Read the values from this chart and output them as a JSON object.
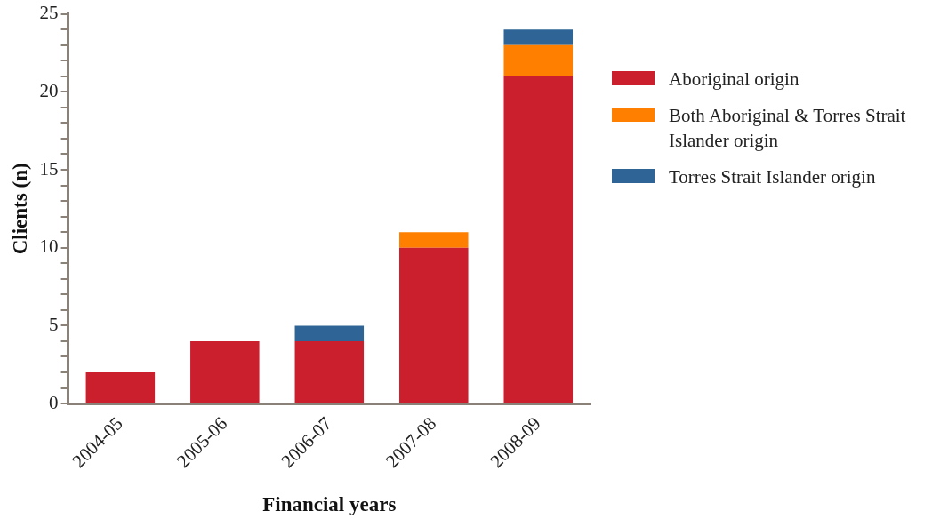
{
  "chart_data": {
    "type": "bar",
    "xlabel": "Financial years",
    "ylabel": "Clients (n)",
    "categories": [
      "2004-05",
      "2005-06",
      "2006-07",
      "2007-08",
      "2008-09"
    ],
    "stacked": true,
    "series": [
      {
        "name": "Aboriginal origin",
        "color": "#cc1f2e",
        "values": [
          2,
          4,
          4,
          10,
          21
        ]
      },
      {
        "name": "Both Aboriginal & Torres Strait Islander origin",
        "color": "#ff8000",
        "values": [
          0,
          0,
          0,
          1,
          2
        ]
      },
      {
        "name": "Torres Strait Islander origin",
        "color": "#2e6496",
        "values": [
          0,
          0,
          1,
          0,
          1
        ]
      }
    ],
    "ylim": [
      0,
      25
    ],
    "yticks": [
      0,
      {
        "value": 1,
        "label": null
      },
      {
        "value": 2,
        "label": null
      },
      {
        "value": 3,
        "label": null
      },
      {
        "value": 4,
        "label": null
      },
      5,
      {
        "value": 6,
        "label": null
      },
      {
        "value": 7,
        "label": null
      },
      {
        "value": 8,
        "label": null
      },
      {
        "value": 9,
        "label": null
      },
      10,
      {
        "value": 11,
        "label": null
      },
      {
        "value": 12,
        "label": null
      },
      {
        "value": 13,
        "label": null
      },
      {
        "value": 14,
        "label": null
      },
      15,
      {
        "value": 16,
        "label": null
      },
      {
        "value": 17,
        "label": null
      },
      {
        "value": 18,
        "label": null
      },
      {
        "value": 19,
        "label": null
      },
      20,
      {
        "value": 21,
        "label": null
      },
      {
        "value": 22,
        "label": null
      },
      {
        "value": 23,
        "label": null
      },
      {
        "value": 24,
        "label": null
      },
      25
    ],
    "grid": false,
    "legend": "right"
  }
}
